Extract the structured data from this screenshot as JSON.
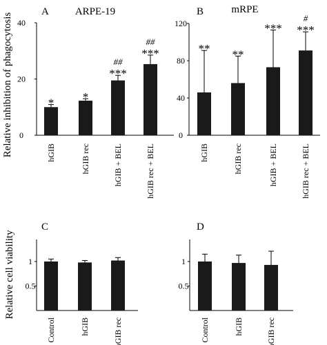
{
  "ylabel_top": "Relative inhibition of phagocytosis",
  "ylabel_bottom": "Relative cell viability",
  "bar_color": "#1a1a1a",
  "chart_data": [
    {
      "type": "bar",
      "panel": "A",
      "title": "ARPE-19",
      "categories": [
        "hGIB",
        "hGIB rec",
        "hGIB + BEL",
        "hGIB rec + BEL"
      ],
      "values": [
        10,
        12.3,
        19.5,
        25.3
      ],
      "errors": [
        0.9,
        0.7,
        1.8,
        3.2
      ],
      "annotations": [
        [
          "*"
        ],
        [
          "*"
        ],
        [
          "##",
          "***"
        ],
        [
          "##",
          "***"
        ]
      ],
      "yticks": [
        0,
        20,
        40
      ],
      "ylim": [
        0,
        40
      ]
    },
    {
      "type": "bar",
      "panel": "B",
      "title": "mRPE",
      "categories": [
        "hGIB",
        "hGIB rec",
        "hGIB + BEL",
        "hGIB rec + BEL"
      ],
      "values": [
        46,
        56,
        73,
        91
      ],
      "errors": [
        45,
        29,
        40,
        20
      ],
      "annotations": [
        [
          "**"
        ],
        [
          "**"
        ],
        [
          "***"
        ],
        [
          "#",
          "***"
        ]
      ],
      "yticks": [
        0,
        40,
        80,
        120
      ],
      "ylim": [
        0,
        120
      ]
    },
    {
      "type": "bar",
      "panel": "C",
      "title": "",
      "categories": [
        "Control",
        "hGIB",
        "hGIB rec"
      ],
      "values": [
        1.0,
        0.98,
        1.02
      ],
      "errors": [
        0.05,
        0.04,
        0.06
      ],
      "annotations": [
        [],
        [],
        []
      ],
      "yticks": [
        0.5,
        1
      ],
      "ylim": [
        0,
        1.45
      ]
    },
    {
      "type": "bar",
      "panel": "D",
      "title": "",
      "categories": [
        "Control",
        "hGIB",
        "hGIB rec"
      ],
      "values": [
        1.0,
        0.97,
        0.93
      ],
      "errors": [
        0.15,
        0.16,
        0.28
      ],
      "annotations": [
        [],
        [],
        []
      ],
      "yticks": [
        0.5,
        1
      ],
      "ylim": [
        0,
        1.45
      ]
    }
  ]
}
